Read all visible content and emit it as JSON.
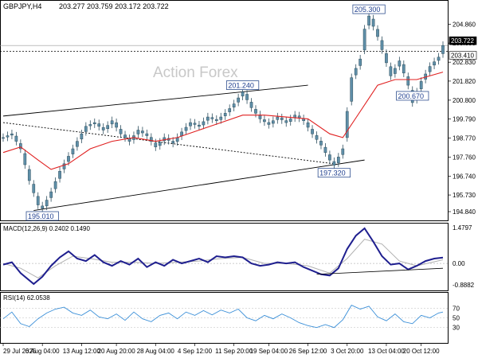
{
  "chart_data": {
    "type": "candlestick",
    "symbol_header": "GBPJPY,H4",
    "ohlc_header": "203.277 203.759 203.172 203.722",
    "watermark": "Action Forex",
    "price_axis": {
      "range": [
        194.5,
        205.9
      ],
      "ticks": [
        "204.860",
        "203.850",
        "202.830",
        "201.820",
        "200.800",
        "199.790",
        "198.770",
        "197.760",
        "196.740",
        "195.730",
        "194.840"
      ],
      "tick_values": [
        204.86,
        203.85,
        202.83,
        201.82,
        200.8,
        199.79,
        198.77,
        197.76,
        196.74,
        195.73,
        194.84
      ],
      "last_price_label": "203.722",
      "last_price": 203.722,
      "ref_price_label": "203.410",
      "ref_price": 203.41
    },
    "annotations": [
      {
        "label": "205.300",
        "value": 205.3
      },
      {
        "label": "201.240",
        "value": 201.24
      },
      {
        "label": "200.670",
        "value": 200.67
      },
      {
        "label": "197.320",
        "value": 197.32
      },
      {
        "label": "195.010",
        "value": 195.01
      }
    ],
    "price_path": [
      [
        0,
        198.8
      ],
      [
        2,
        199.0
      ],
      [
        4,
        198.2
      ],
      [
        6,
        196.5
      ],
      [
        8,
        195.2
      ],
      [
        9,
        195.01
      ],
      [
        11,
        195.9
      ],
      [
        13,
        197.0
      ],
      [
        15,
        197.8
      ],
      [
        17,
        198.6
      ],
      [
        19,
        199.4
      ],
      [
        21,
        199.6
      ],
      [
        23,
        199.2
      ],
      [
        25,
        199.7
      ],
      [
        27,
        199.0
      ],
      [
        29,
        198.6
      ],
      [
        31,
        199.2
      ],
      [
        33,
        198.9
      ],
      [
        35,
        198.3
      ],
      [
        37,
        198.8
      ],
      [
        39,
        198.5
      ],
      [
        41,
        199.1
      ],
      [
        43,
        199.6
      ],
      [
        45,
        199.4
      ],
      [
        47,
        199.9
      ],
      [
        49,
        199.7
      ],
      [
        51,
        200.1
      ],
      [
        53,
        200.6
      ],
      [
        55,
        201.24
      ],
      [
        57,
        200.4
      ],
      [
        59,
        199.8
      ],
      [
        61,
        199.5
      ],
      [
        63,
        199.9
      ],
      [
        65,
        199.6
      ],
      [
        67,
        200.0
      ],
      [
        69,
        199.7
      ],
      [
        71,
        199.0
      ],
      [
        73,
        198.4
      ],
      [
        75,
        197.6
      ],
      [
        76,
        197.32
      ],
      [
        78,
        198.2
      ],
      [
        79,
        200.2
      ],
      [
        80,
        202.0
      ],
      [
        82,
        203.0
      ],
      [
        83,
        204.6
      ],
      [
        84,
        205.3
      ],
      [
        86,
        204.2
      ],
      [
        88,
        202.8
      ],
      [
        89,
        202.1
      ],
      [
        91,
        202.9
      ],
      [
        93,
        201.6
      ],
      [
        94,
        200.67
      ],
      [
        96,
        201.8
      ],
      [
        98,
        202.6
      ],
      [
        100,
        203.1
      ],
      [
        101,
        203.722
      ]
    ],
    "ma_path": [
      [
        0,
        198.0
      ],
      [
        4,
        198.3
      ],
      [
        8,
        197.6
      ],
      [
        11,
        197.1
      ],
      [
        15,
        197.4
      ],
      [
        20,
        198.2
      ],
      [
        25,
        198.6
      ],
      [
        30,
        198.8
      ],
      [
        35,
        198.6
      ],
      [
        40,
        198.8
      ],
      [
        45,
        199.2
      ],
      [
        50,
        199.6
      ],
      [
        55,
        200.0
      ],
      [
        60,
        200.0
      ],
      [
        65,
        199.9
      ],
      [
        70,
        199.8
      ],
      [
        75,
        199.0
      ],
      [
        78,
        198.8
      ],
      [
        82,
        200.2
      ],
      [
        86,
        201.6
      ],
      [
        90,
        201.9
      ],
      [
        95,
        201.9
      ],
      [
        101,
        202.3
      ]
    ],
    "trend_lines": [
      {
        "from": [
          0,
          199.95
        ],
        "to": [
          70,
          201.6
        ]
      },
      {
        "from": [
          7,
          194.9
        ],
        "to": [
          83,
          197.6
        ]
      },
      {
        "from": [
          0,
          199.6
        ],
        "to": [
          76,
          197.4
        ]
      }
    ],
    "macd": {
      "label": "MACD(12,26,9) 0.2402 0.1490",
      "range": [
        -1.05,
        1.55
      ],
      "ticks": [
        "1.4797",
        "0.00",
        "-0.8882"
      ],
      "tick_values": [
        1.4797,
        0.0,
        -0.8882
      ],
      "line": [
        [
          0,
          -0.05
        ],
        [
          2,
          0.05
        ],
        [
          4,
          -0.4
        ],
        [
          7,
          -0.85
        ],
        [
          9,
          -0.55
        ],
        [
          11,
          -0.1
        ],
        [
          13,
          0.25
        ],
        [
          15,
          0.5
        ],
        [
          17,
          0.2
        ],
        [
          19,
          0.1
        ],
        [
          21,
          0.35
        ],
        [
          23,
          0.05
        ],
        [
          25,
          -0.1
        ],
        [
          27,
          0.1
        ],
        [
          29,
          -0.05
        ],
        [
          31,
          0.2
        ],
        [
          33,
          -0.15
        ],
        [
          35,
          0.05
        ],
        [
          37,
          -0.1
        ],
        [
          39,
          0.15
        ],
        [
          41,
          0.0
        ],
        [
          43,
          0.1
        ],
        [
          45,
          0.2
        ],
        [
          47,
          0.05
        ],
        [
          49,
          0.3
        ],
        [
          51,
          0.25
        ],
        [
          53,
          0.3
        ],
        [
          55,
          0.25
        ],
        [
          57,
          0.0
        ],
        [
          59,
          -0.1
        ],
        [
          61,
          -0.05
        ],
        [
          63,
          0.05
        ],
        [
          65,
          0.0
        ],
        [
          67,
          0.05
        ],
        [
          69,
          -0.15
        ],
        [
          71,
          -0.3
        ],
        [
          73,
          -0.45
        ],
        [
          75,
          -0.5
        ],
        [
          77,
          -0.2
        ],
        [
          79,
          0.6
        ],
        [
          81,
          1.15
        ],
        [
          83,
          1.45
        ],
        [
          85,
          0.9
        ],
        [
          87,
          0.3
        ],
        [
          89,
          -0.05
        ],
        [
          91,
          0.0
        ],
        [
          93,
          -0.25
        ],
        [
          95,
          -0.1
        ],
        [
          97,
          0.1
        ],
        [
          99,
          0.2
        ],
        [
          101,
          0.24
        ]
      ],
      "signal": [
        [
          0,
          0.0
        ],
        [
          4,
          -0.2
        ],
        [
          8,
          -0.6
        ],
        [
          12,
          -0.1
        ],
        [
          16,
          0.3
        ],
        [
          20,
          0.2
        ],
        [
          25,
          0.05
        ],
        [
          30,
          0.05
        ],
        [
          35,
          0.0
        ],
        [
          40,
          0.05
        ],
        [
          45,
          0.1
        ],
        [
          50,
          0.2
        ],
        [
          55,
          0.25
        ],
        [
          60,
          0.0
        ],
        [
          65,
          0.0
        ],
        [
          70,
          -0.1
        ],
        [
          75,
          -0.4
        ],
        [
          79,
          0.2
        ],
        [
          83,
          1.0
        ],
        [
          87,
          0.8
        ],
        [
          91,
          0.1
        ],
        [
          95,
          -0.1
        ],
        [
          101,
          0.15
        ]
      ],
      "trend_line": {
        "from": [
          72,
          -0.45
        ],
        "to": [
          101,
          -0.2
        ]
      }
    },
    "rsi": {
      "label": "RSI(14) 62.0538",
      "range": [
        0,
        100
      ],
      "ticks": [
        "70",
        "50",
        "30"
      ],
      "tick_values": [
        70,
        50,
        30
      ],
      "line": [
        [
          0,
          48
        ],
        [
          2,
          62
        ],
        [
          4,
          38
        ],
        [
          6,
          32
        ],
        [
          8,
          48
        ],
        [
          10,
          60
        ],
        [
          12,
          68
        ],
        [
          14,
          72
        ],
        [
          16,
          60
        ],
        [
          18,
          55
        ],
        [
          20,
          66
        ],
        [
          22,
          52
        ],
        [
          24,
          48
        ],
        [
          26,
          58
        ],
        [
          28,
          45
        ],
        [
          30,
          62
        ],
        [
          32,
          48
        ],
        [
          34,
          42
        ],
        [
          36,
          55
        ],
        [
          38,
          60
        ],
        [
          40,
          48
        ],
        [
          42,
          62
        ],
        [
          44,
          55
        ],
        [
          46,
          65
        ],
        [
          48,
          56
        ],
        [
          50,
          66
        ],
        [
          52,
          60
        ],
        [
          54,
          68
        ],
        [
          56,
          50
        ],
        [
          58,
          44
        ],
        [
          60,
          55
        ],
        [
          62,
          48
        ],
        [
          64,
          58
        ],
        [
          66,
          50
        ],
        [
          68,
          40
        ],
        [
          70,
          34
        ],
        [
          72,
          30
        ],
        [
          74,
          36
        ],
        [
          76,
          30
        ],
        [
          78,
          46
        ],
        [
          80,
          76
        ],
        [
          82,
          68
        ],
        [
          84,
          74
        ],
        [
          86,
          52
        ],
        [
          88,
          44
        ],
        [
          90,
          58
        ],
        [
          92,
          42
        ],
        [
          94,
          38
        ],
        [
          96,
          55
        ],
        [
          98,
          50
        ],
        [
          100,
          60
        ],
        [
          101,
          62
        ]
      ]
    },
    "x_axis": {
      "labels": [
        "29 Jul 2025",
        "6 Aug 04:00",
        "13 Aug 12:00",
        "20 Aug 20:00",
        "28 Aug 04:00",
        "4 Sep 12:00",
        "11 Sep 20:00",
        "19 Sep 04:00",
        "26 Sep 12:00",
        "3 Oct 20:00",
        "13 Oct 04:00",
        "20 Oct 12:00"
      ],
      "positions": [
        0,
        9,
        18,
        26,
        35,
        44,
        53,
        61,
        70,
        79,
        88,
        96
      ],
      "count": 102
    }
  }
}
